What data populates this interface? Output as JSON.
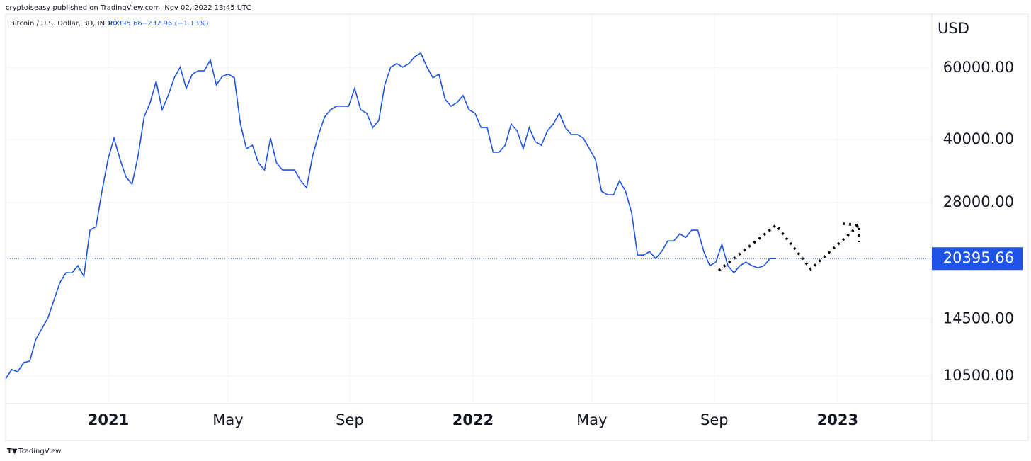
{
  "chart_data": {
    "type": "line",
    "attribution": "cryptoiseasy published on TradingView.com, Nov 02, 2022 13:45 UTC",
    "symbol": "Bitcoin / U.S. Dollar, 3D, INDEX",
    "last_price": 20395.66,
    "change": "−232.96 (−1.13%)",
    "currency": "USD",
    "footer": "TradingView",
    "color": "#1e53e5",
    "log_y": true,
    "grid": true,
    "values": [
      10330,
      10890,
      10755,
      11330,
      11420,
      12910,
      13710,
      14560,
      16090,
      17790,
      18830,
      18830,
      19590,
      18450,
      23950,
      24430,
      29850,
      35760,
      40320,
      35760,
      32350,
      31080,
      36480,
      45470,
      49260,
      55600,
      47360,
      51320,
      56720,
      60240,
      53420,
      57880,
      59040,
      59040,
      62710,
      54500,
      57190,
      57880,
      56720,
      43690,
      37970,
      38740,
      35040,
      33670,
      40320,
      35040,
      33670,
      33670,
      33670,
      31700,
      30460,
      36480,
      41140,
      45470,
      47360,
      48320,
      48320,
      48320,
      53420,
      47360,
      46430,
      42820,
      44570,
      54500,
      60240,
      61460,
      60240,
      61460,
      63970,
      65260,
      60240,
      56720,
      57880,
      50300,
      48320,
      49310,
      51320,
      47360,
      46430,
      42820,
      42820,
      37220,
      37220,
      38740,
      43690,
      41970,
      37970,
      42820,
      39520,
      38740,
      41970,
      43690,
      46430,
      42820,
      41140,
      41140,
      40320,
      37970,
      35760,
      29850,
      29260,
      29260,
      31700,
      29850,
      26470,
      20810,
      20810,
      21230,
      20396,
      21230,
      22540,
      22540,
      23470,
      23000,
      23950,
      23950,
      21230,
      19590,
      19990,
      22100,
      19590,
      18830,
      19590,
      19990,
      19590,
      19360,
      19590,
      20396,
      20396
    ],
    "xlim": [
      0,
      153.9
    ],
    "xticks": [
      {
        "value": 17.06,
        "label": "2021"
      },
      {
        "value": 36.94,
        "label": "May"
      },
      {
        "value": 57.18,
        "label": "Sep"
      },
      {
        "value": 77.65,
        "label": "2022"
      },
      {
        "value": 97.41,
        "label": "May"
      },
      {
        "value": 117.76,
        "label": "Sep"
      },
      {
        "value": 138.24,
        "label": "2023"
      }
    ],
    "ylim": [
      8980,
      81300
    ],
    "yticks": [
      {
        "value": 10500,
        "label": "10500.00"
      },
      {
        "value": 14500,
        "label": "14500.00"
      },
      {
        "value": 28000,
        "label": "28000.00"
      },
      {
        "value": 40000,
        "label": "40000.00"
      },
      {
        "value": 60000,
        "label": "60000.00"
      }
    ]
  }
}
